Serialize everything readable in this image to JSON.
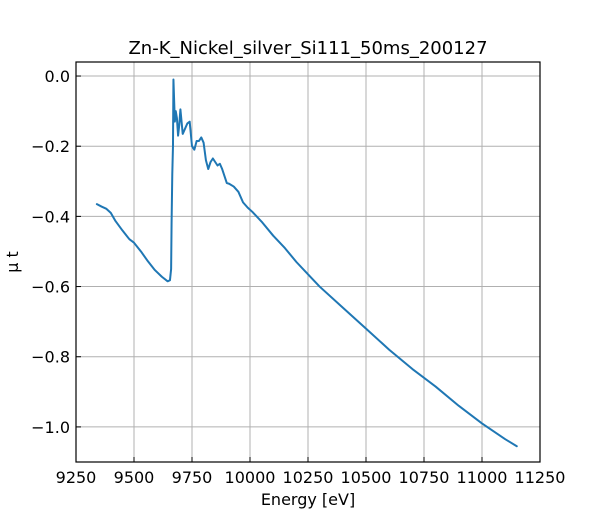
{
  "chart_data": {
    "type": "line",
    "title": "Zn-K_Nickel_silver_Si111_50ms_200127",
    "xlabel": "Energy [eV]",
    "ylabel": "μ t",
    "xlim": [
      9250,
      11250
    ],
    "ylim": [
      -1.1,
      0.04
    ],
    "xticks": [
      9250,
      9500,
      9750,
      10000,
      10250,
      10500,
      10750,
      11000,
      11250
    ],
    "yticks": [
      0.0,
      -0.2,
      -0.4,
      -0.6,
      -0.8,
      -1.0
    ],
    "xtick_labels": [
      "9250",
      "9500",
      "9750",
      "10000",
      "10250",
      "10500",
      "10750",
      "11000",
      "11250"
    ],
    "ytick_labels": [
      "0.0",
      "−0.2",
      "−0.4",
      "−0.6",
      "−0.8",
      "−1.0"
    ],
    "grid": true,
    "series": [
      {
        "color": "#1f77b4",
        "x": [
          9340,
          9360,
          9380,
          9400,
          9420,
          9450,
          9480,
          9500,
          9530,
          9560,
          9590,
          9620,
          9645,
          9655,
          9660,
          9662,
          9665,
          9668,
          9670,
          9673,
          9676,
          9680,
          9685,
          9690,
          9695,
          9700,
          9705,
          9710,
          9720,
          9730,
          9740,
          9750,
          9760,
          9770,
          9780,
          9790,
          9800,
          9810,
          9820,
          9830,
          9840,
          9850,
          9860,
          9870,
          9880,
          9890,
          9900,
          9910,
          9930,
          9950,
          9970,
          9990,
          10010,
          10050,
          10100,
          10150,
          10200,
          10250,
          10300,
          10400,
          10500,
          10600,
          10700,
          10800,
          10900,
          11000,
          11100,
          11150
        ],
        "values": [
          -0.365,
          -0.372,
          -0.378,
          -0.39,
          -0.413,
          -0.44,
          -0.465,
          -0.475,
          -0.5,
          -0.528,
          -0.553,
          -0.572,
          -0.585,
          -0.582,
          -0.55,
          -0.42,
          -0.28,
          -0.2,
          -0.01,
          -0.07,
          -0.13,
          -0.1,
          -0.12,
          -0.17,
          -0.14,
          -0.095,
          -0.13,
          -0.165,
          -0.15,
          -0.135,
          -0.13,
          -0.2,
          -0.21,
          -0.185,
          -0.185,
          -0.175,
          -0.19,
          -0.24,
          -0.265,
          -0.245,
          -0.235,
          -0.245,
          -0.255,
          -0.25,
          -0.265,
          -0.285,
          -0.305,
          -0.307,
          -0.315,
          -0.33,
          -0.36,
          -0.375,
          -0.387,
          -0.415,
          -0.455,
          -0.49,
          -0.53,
          -0.565,
          -0.6,
          -0.66,
          -0.72,
          -0.78,
          -0.835,
          -0.885,
          -0.94,
          -0.99,
          -1.035,
          -1.055
        ]
      }
    ]
  }
}
